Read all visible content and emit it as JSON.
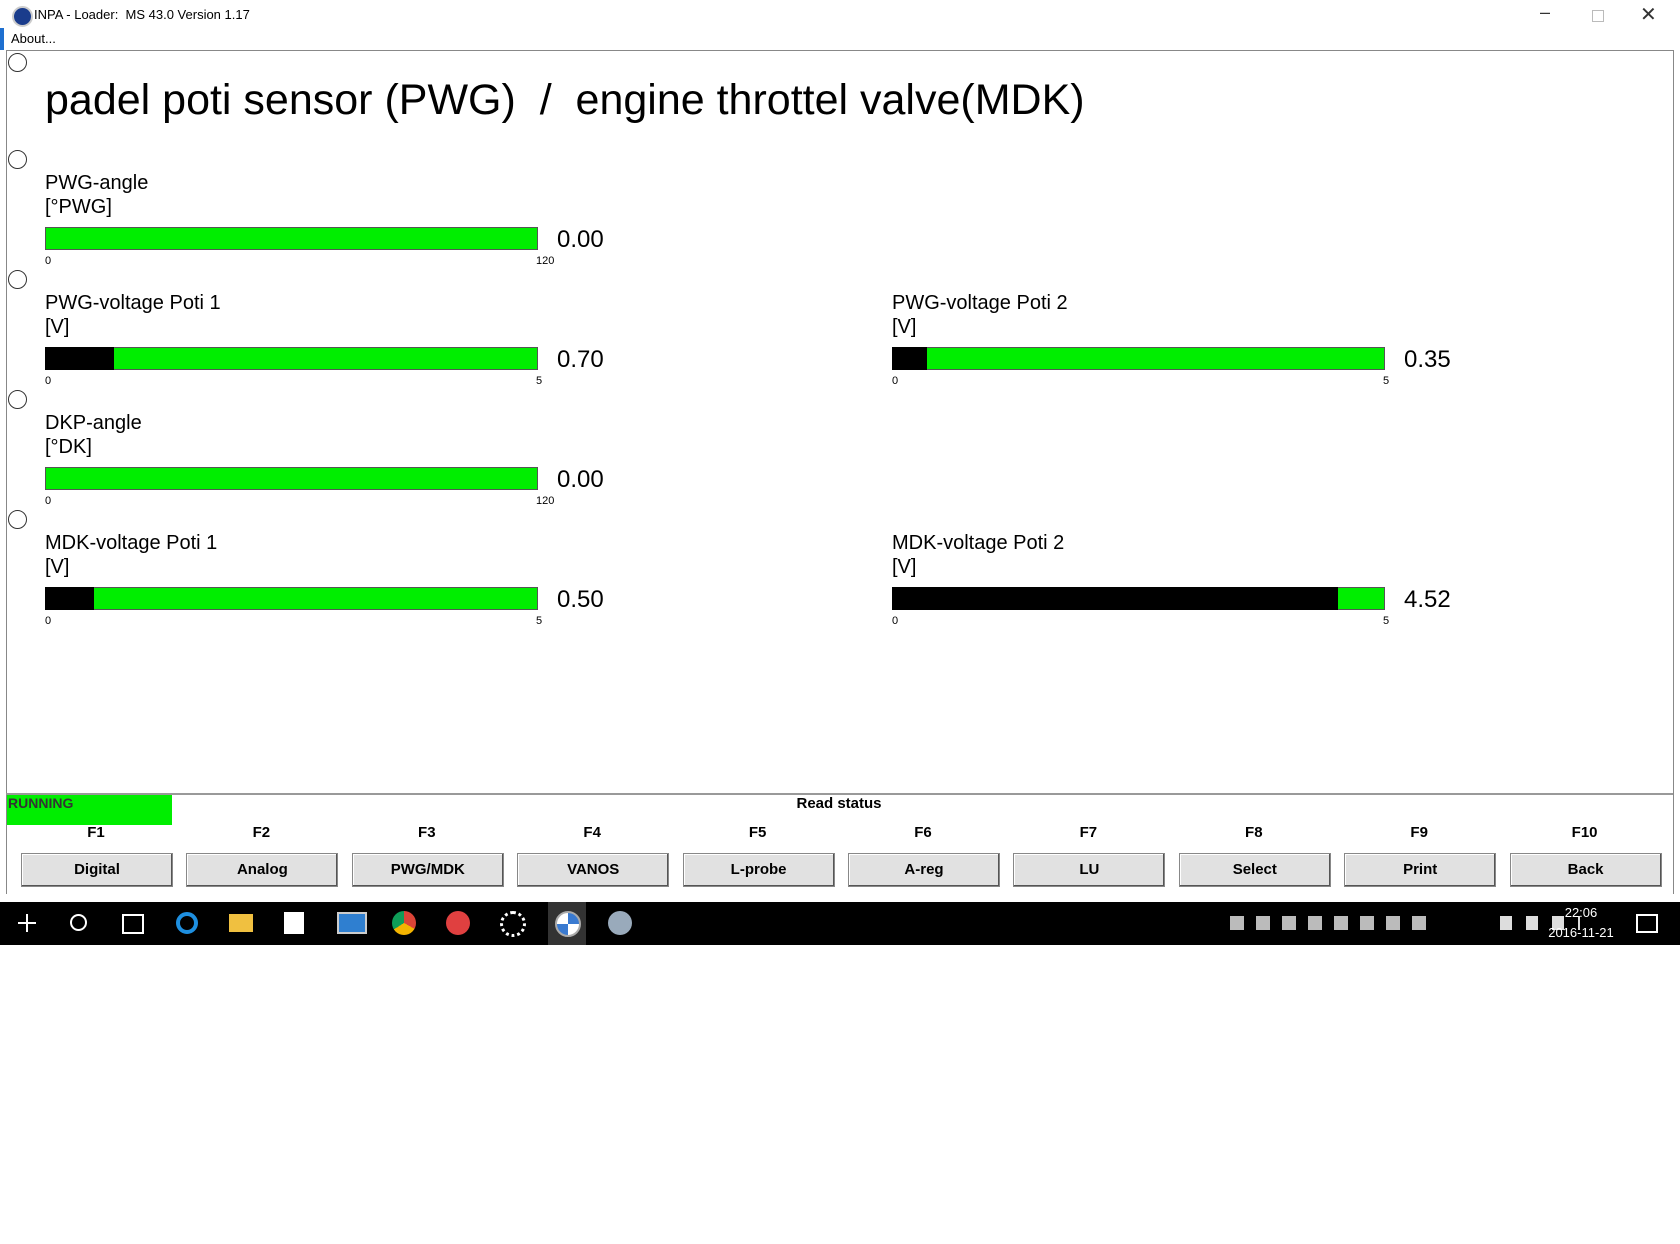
{
  "window": {
    "title": "INPA - Loader:  MS 43.0 Version 1.17",
    "menu": "About..."
  },
  "heading": "padel poti sensor (PWG)  /  engine throttel valve(MDK)",
  "gauges": [
    {
      "label": "PWG-angle",
      "unit": "[°PWG]",
      "min": 0,
      "max": 120,
      "value": 0,
      "value_label": "0.00"
    },
    {
      "label": "PWG-voltage Poti 1",
      "unit": "[V]",
      "min": 0,
      "max": 5,
      "value": 0.7,
      "value_label": "0.70"
    },
    {
      "label": "PWG-voltage Poti 2",
      "unit": "[V]",
      "min": 0,
      "max": 5,
      "value": 0.35,
      "value_label": "0.35"
    },
    {
      "label": "DKP-angle",
      "unit": "[°DK]",
      "min": 0,
      "max": 120,
      "value": 0,
      "value_label": "0.00"
    },
    {
      "label": "MDK-voltage Poti 1",
      "unit": "[V]",
      "min": 0,
      "max": 5,
      "value": 0.5,
      "value_label": "0.50"
    },
    {
      "label": "MDK-voltage Poti 2",
      "unit": "[V]",
      "min": 0,
      "max": 5,
      "value": 4.52,
      "value_label": "4.52"
    }
  ],
  "status": {
    "state": "RUNNING",
    "message": "Read status"
  },
  "function_keys": [
    {
      "key": "F1",
      "label": "Digital"
    },
    {
      "key": "F2",
      "label": "Analog"
    },
    {
      "key": "F3",
      "label": "PWG/MDK"
    },
    {
      "key": "F4",
      "label": "VANOS"
    },
    {
      "key": "F5",
      "label": "L-probe"
    },
    {
      "key": "F6",
      "label": "A-reg"
    },
    {
      "key": "F7",
      "label": "LU"
    },
    {
      "key": "F8",
      "label": "Select"
    },
    {
      "key": "F9",
      "label": "Print"
    },
    {
      "key": "F10",
      "label": "Back"
    }
  ],
  "taskbar": {
    "time": "22:06",
    "date": "2016-11-21"
  }
}
